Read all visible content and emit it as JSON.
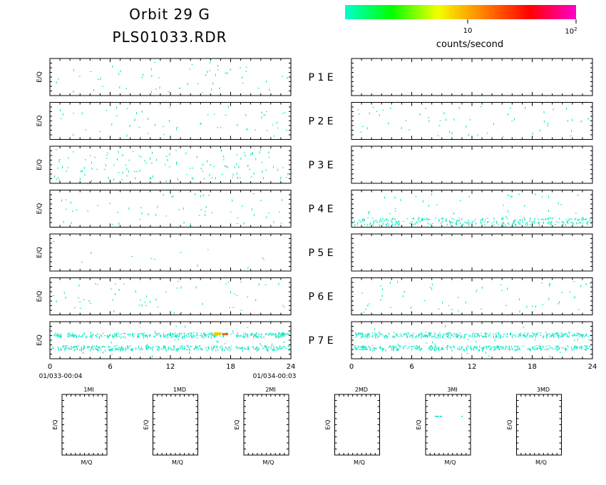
{
  "header": {
    "title_line1": "Orbit  29  G",
    "title_line2": "PLS01033.RDR"
  },
  "colorbar": {
    "label": "counts/second",
    "tick_10": "10",
    "tick_100_base": "10",
    "tick_100_exp": "2",
    "gradient": [
      "#00ffd0",
      "#00ff00",
      "#f4ff00",
      "#ff8000",
      "#ff0000",
      "#ff00cc"
    ]
  },
  "colors": {
    "sparse": "#00e5c0",
    "hot": "#e8d000",
    "red": "#ff6020"
  },
  "time_axis": {
    "ticks": [
      "0",
      "6",
      "12",
      "18",
      "24"
    ],
    "start_label": "01/033-00:04",
    "end_label": "01/034-00:03"
  },
  "panel_ylabel": "E/Q",
  "chart_data": {
    "type": "heatmap",
    "x_range": [
      0,
      24
    ],
    "x_unit": "hours",
    "rows": [
      {
        "label": "P   1   E",
        "left_density": "low",
        "right_density": "none"
      },
      {
        "label": "P   2   E",
        "left_density": "low",
        "right_density": "low"
      },
      {
        "label": "P   3   E",
        "left_density": "medium",
        "right_density": "none"
      },
      {
        "label": "P   4   E",
        "left_density": "low",
        "right_density": "band-bottom"
      },
      {
        "label": "P   5   E",
        "left_density": "very-low",
        "right_density": "none"
      },
      {
        "label": "P   6   E",
        "left_density": "low",
        "right_density": "low"
      },
      {
        "label": "P   7   E",
        "left_density": "two-bands",
        "right_density": "two-bands"
      }
    ],
    "colorbar_ticks": [
      "10",
      "10²"
    ],
    "colorbar_label": "counts/second"
  },
  "mini_panels": [
    {
      "title": "1MI",
      "xlabel": "M/Q",
      "ylabel": "E/Q"
    },
    {
      "title": "1MD",
      "xlabel": "M/Q",
      "ylabel": "E/Q"
    },
    {
      "title": "2MI",
      "xlabel": "M/Q",
      "ylabel": "E/Q"
    },
    {
      "title": "2MD",
      "xlabel": "M/Q",
      "ylabel": "E/Q"
    },
    {
      "title": "3MI",
      "xlabel": "M/Q",
      "ylabel": "E/Q"
    },
    {
      "title": "3MD",
      "xlabel": "M/Q",
      "ylabel": "E/Q"
    }
  ]
}
